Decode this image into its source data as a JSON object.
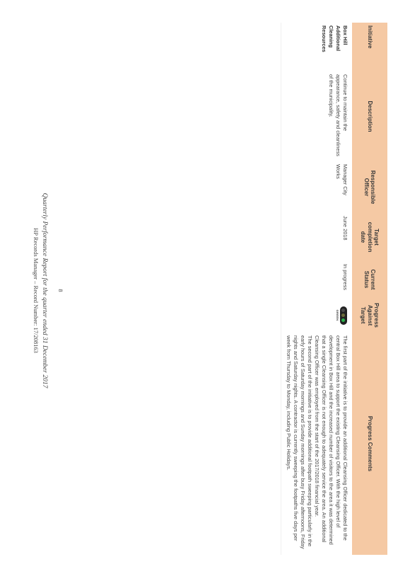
{
  "table": {
    "headers": {
      "initiative": "Initiative",
      "description": "Description",
      "responsible_officer": "Responsible Officer",
      "target_completion": "Target completion date",
      "current_status": "Current Status",
      "progress_against_target": "Progress Against Target",
      "progress_comments": "Progress Comments"
    },
    "rows": [
      {
        "initiative": "Box Hill Additional Cleaning Resources",
        "description": "Continue to maintain the appearance, safety and cleanliness of the municipality.",
        "responsible_officer": "Manager City Works",
        "target_completion": "June 2018",
        "current_status": "In progress",
        "progress_indicator": "GREEN",
        "indicator_colors": [
          "#4a4a4a",
          "#6b6b3a",
          "#2bb24c"
        ],
        "progress_comments_p1": "The first part of the initiative is to provide an additional Cleansing Officer dedicated to the central Box Hill area to support the existing Cleansing Officer. With the high level of development in Box Hill and the increased number of visitors to the area it was determined that a single Cleansing Officer is not enough to adequately service the area. An additional Cleansing Officer was employed from the start of the 2017/2018 financial year.",
        "progress_comments_p2": "The second part of the initiative is to provide additional footpath sweeping particularly in the early hours of Saturday mornings and Sunday mornings after busy Friday afternoons, Friday nights and Saturday nights. A contractor is currently sweeping the footpaths five days per week from Thursday to Monday, including Public Holidays."
      }
    ]
  },
  "footer": {
    "page_number": "8",
    "report_title": "Quarterly Performance Report for the quarter ended 31 December 2017",
    "record": "HP Records Manager – Record Number: 17/208163"
  }
}
